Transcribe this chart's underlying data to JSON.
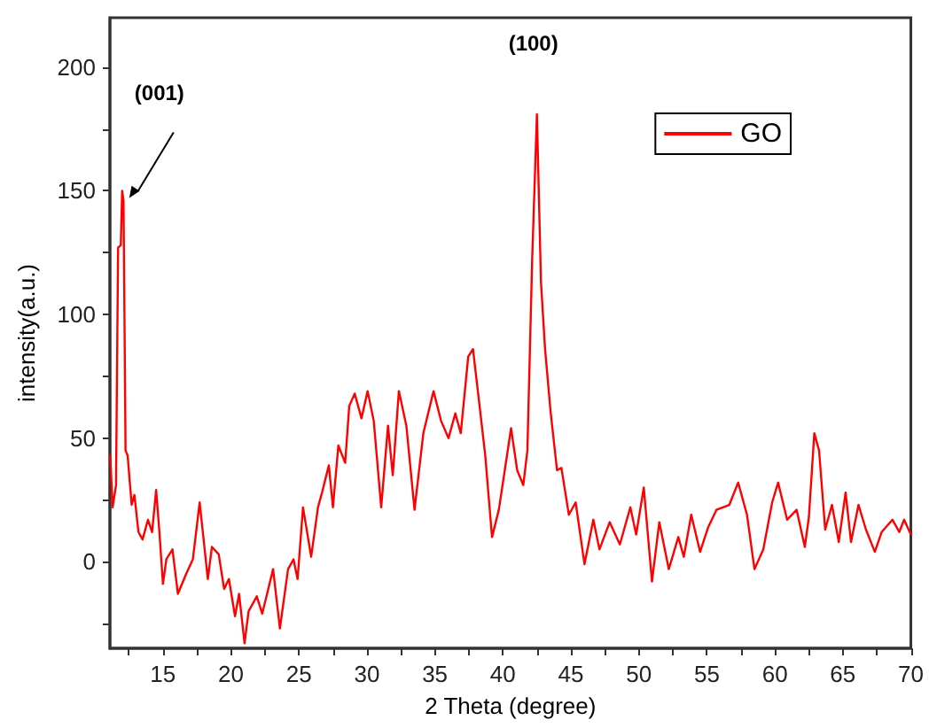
{
  "chart_data": {
    "type": "line",
    "xlabel": "2 Theta (degree)",
    "ylabel": "intensity(a.u.)",
    "xlim": [
      11.1,
      70
    ],
    "ylim": [
      -35,
      220
    ],
    "xticks": [
      {
        "value": 12.5,
        "label": null
      },
      15,
      {
        "value": 17.5,
        "label": null
      },
      20,
      {
        "value": 22.5,
        "label": null
      },
      25,
      {
        "value": 27.5,
        "label": null
      },
      30,
      {
        "value": 32.5,
        "label": null
      },
      35,
      {
        "value": 37.5,
        "label": null
      },
      40,
      {
        "value": 42.5,
        "label": null
      },
      45,
      {
        "value": 47.5,
        "label": null
      },
      50,
      {
        "value": 52.5,
        "label": null
      },
      55,
      {
        "value": 57.5,
        "label": null
      },
      60,
      {
        "value": 62.5,
        "label": null
      },
      65,
      {
        "value": 67.5,
        "label": null
      },
      70
    ],
    "yticks": [
      {
        "value": -25,
        "label": null
      },
      0,
      {
        "value": 25,
        "label": null
      },
      50,
      {
        "value": 75,
        "label": null
      },
      100,
      {
        "value": 125,
        "label": null
      },
      150,
      {
        "value": 175,
        "label": null
      },
      200
    ],
    "grid": false,
    "legend": "top right",
    "marker": "none",
    "line_style": "solid",
    "annotations": [
      {
        "text": "(001)",
        "x": 12.0,
        "y": 150
      },
      {
        "text": "(100)",
        "x": 42.5,
        "y": 181
      }
    ],
    "series": [
      {
        "name": "GO",
        "color": "#ff0000",
        "x": [
          11.12,
          11.3,
          11.55,
          11.7,
          11.9,
          12.0,
          12.1,
          12.25,
          12.4,
          12.7,
          12.9,
          13.2,
          13.5,
          13.9,
          14.2,
          14.5,
          14.74,
          15.0,
          15.25,
          15.7,
          16.1,
          16.7,
          17.2,
          17.7,
          18.3,
          18.6,
          19.1,
          19.5,
          19.85,
          20.3,
          20.6,
          21.0,
          21.3,
          21.9,
          22.3,
          23.1,
          23.6,
          24.2,
          24.6,
          24.9,
          25.3,
          25.9,
          26.4,
          26.7,
          27.2,
          27.5,
          27.9,
          28.4,
          28.7,
          29.1,
          29.6,
          30.05,
          30.5,
          31.05,
          31.55,
          31.9,
          32.35,
          32.9,
          33.5,
          34.15,
          34.9,
          35.45,
          36.0,
          36.5,
          36.9,
          37.45,
          37.8,
          38.2,
          38.7,
          39.2,
          39.7,
          40.3,
          40.6,
          41.05,
          41.5,
          41.8,
          42.15,
          42.5,
          42.8,
          43.1,
          43.5,
          43.98,
          44.3,
          44.85,
          45.35,
          46.0,
          46.65,
          47.1,
          47.85,
          48.6,
          49.37,
          49.8,
          50.36,
          50.96,
          51.5,
          52.2,
          52.9,
          53.3,
          53.85,
          54.5,
          55.1,
          55.7,
          56.65,
          57.3,
          57.95,
          58.5,
          59.15,
          59.8,
          60.24,
          60.9,
          61.6,
          62.2,
          62.5,
          62.9,
          63.25,
          63.7,
          64.2,
          64.7,
          65.2,
          65.6,
          66.15,
          66.7,
          67.35,
          67.85,
          68.65,
          69.15,
          69.5,
          70.0
        ],
        "values": [
          43,
          22,
          31,
          127,
          128,
          150,
          146,
          45,
          43,
          23,
          27,
          12,
          9,
          17,
          12,
          29,
          12,
          -9,
          1,
          5,
          -13,
          -5,
          1,
          24,
          -7,
          6,
          3,
          -11,
          -7,
          -22,
          -13,
          -33,
          -20,
          -14,
          -21,
          -3,
          -27,
          -3,
          1,
          -7,
          22,
          2,
          22,
          28,
          39,
          22,
          47,
          40,
          63,
          68,
          58,
          69,
          57,
          22,
          55,
          35,
          69,
          55,
          21,
          52,
          69,
          57,
          50,
          60,
          52,
          83,
          86,
          67,
          43,
          10,
          21,
          43,
          54,
          37,
          31,
          45,
          122,
          181,
          113,
          86,
          61,
          37,
          38,
          19,
          24,
          -1,
          17,
          5,
          16,
          7,
          22,
          11,
          30,
          -8,
          16,
          -3,
          10,
          2,
          19,
          4,
          14,
          21,
          23,
          32,
          19,
          -3,
          5,
          24,
          32,
          17,
          21,
          6,
          18,
          52,
          45,
          13,
          23,
          8,
          28,
          8,
          23,
          13,
          4,
          12,
          17,
          12,
          17,
          11
        ]
      }
    ]
  }
}
